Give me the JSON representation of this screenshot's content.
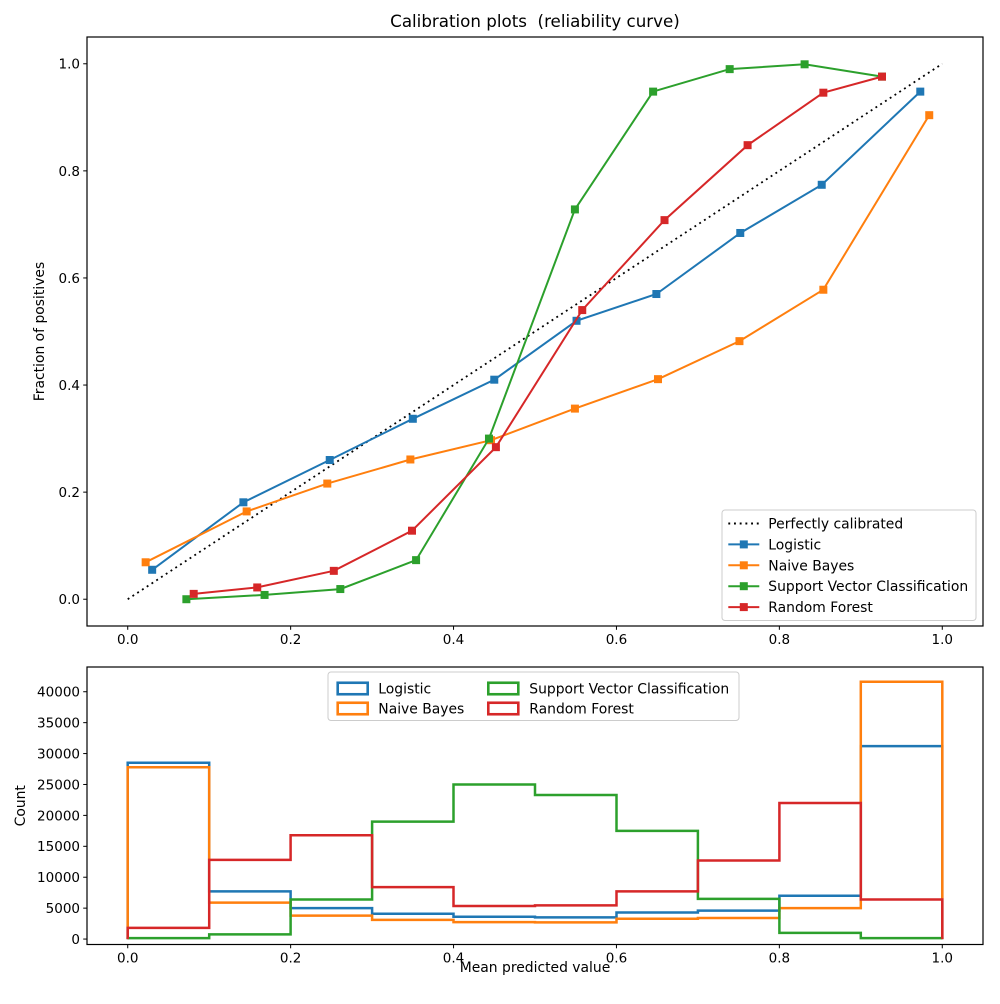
{
  "figure": {
    "background": "#ffffff"
  },
  "chart_data": [
    {
      "type": "line",
      "title": "Calibration plots  (reliability curve)",
      "xlabel": "",
      "ylabel": "Fraction of positives",
      "xlim": [
        -0.05,
        1.05
      ],
      "ylim": [
        -0.05,
        1.05
      ],
      "xticks": [
        "0.0",
        "0.2",
        "0.4",
        "0.6",
        "0.8",
        "1.0"
      ],
      "xtick_values": [
        0,
        0.2,
        0.4,
        0.6,
        0.8,
        1.0
      ],
      "yticks": [
        "0.0",
        "0.2",
        "0.4",
        "0.6",
        "0.8",
        "1.0"
      ],
      "ytick_values": [
        0,
        0.2,
        0.4,
        0.6,
        0.8,
        1.0
      ],
      "grid": false,
      "legend_position": "lower right",
      "reference": {
        "name": "Perfectly calibrated",
        "color": "#000000",
        "linestyle": "dotted",
        "x": [
          0,
          1
        ],
        "y": [
          0,
          1
        ]
      },
      "series": [
        {
          "name": "Logistic",
          "color": "#1f77b4",
          "marker": "square",
          "x": [
            0.03,
            0.142,
            0.248,
            0.35,
            0.45,
            0.551,
            0.649,
            0.752,
            0.852,
            0.973
          ],
          "y": [
            0.055,
            0.181,
            0.26,
            0.337,
            0.41,
            0.52,
            0.57,
            0.684,
            0.774,
            0.948
          ]
        },
        {
          "name": "Naive Bayes",
          "color": "#ff7f0e",
          "marker": "square",
          "x": [
            0.022,
            0.146,
            0.245,
            0.347,
            0.446,
            0.549,
            0.651,
            0.751,
            0.854,
            0.984
          ],
          "y": [
            0.069,
            0.164,
            0.216,
            0.261,
            0.297,
            0.356,
            0.411,
            0.482,
            0.578,
            0.904
          ]
        },
        {
          "name": "Support Vector Classification",
          "color": "#2ca02c",
          "marker": "square",
          "x": [
            0.072,
            0.168,
            0.261,
            0.354,
            0.4435,
            0.549,
            0.645,
            0.739,
            0.831,
            0.926
          ],
          "y": [
            0.0,
            0.008,
            0.019,
            0.073,
            0.3,
            0.728,
            0.948,
            0.99,
            0.999,
            0.976
          ]
        },
        {
          "name": "Random Forest",
          "color": "#d62728",
          "marker": "square",
          "x": [
            0.081,
            0.159,
            0.253,
            0.349,
            0.452,
            0.558,
            0.659,
            0.761,
            0.854,
            0.926
          ],
          "y": [
            0.01,
            0.022,
            0.053,
            0.128,
            0.284,
            0.54,
            0.708,
            0.848,
            0.946,
            0.976
          ]
        }
      ]
    },
    {
      "type": "step-histogram",
      "title": "",
      "xlabel": "Mean predicted value",
      "ylabel": "Count",
      "xlim": [
        -0.05,
        1.05
      ],
      "ylim": [
        -880,
        44000
      ],
      "xticks": [
        "0.0",
        "0.2",
        "0.4",
        "0.6",
        "0.8",
        "1.0"
      ],
      "xtick_values": [
        0,
        0.2,
        0.4,
        0.6,
        0.8,
        1.0
      ],
      "yticks": [
        "0",
        "5000",
        "10000",
        "15000",
        "20000",
        "25000",
        "30000",
        "35000",
        "40000"
      ],
      "ytick_values": [
        0,
        5000,
        10000,
        15000,
        20000,
        25000,
        30000,
        35000,
        40000
      ],
      "legend_position": "upper center",
      "legend_columns": 2,
      "bin_edges": [
        0,
        0.1,
        0.2,
        0.3,
        0.4,
        0.5,
        0.6,
        0.7,
        0.8,
        0.9,
        1.0
      ],
      "series": [
        {
          "name": "Logistic",
          "color": "#1f77b4",
          "counts": [
            28500,
            7700,
            5000,
            4100,
            3600,
            3500,
            4300,
            4600,
            7000,
            31200
          ]
        },
        {
          "name": "Naive Bayes",
          "color": "#ff7f0e",
          "counts": [
            27800,
            5900,
            3800,
            3100,
            2750,
            2700,
            3300,
            3400,
            5000,
            41600
          ]
        },
        {
          "name": "Support Vector Classification",
          "color": "#2ca02c",
          "counts": [
            150,
            750,
            6400,
            19000,
            25000,
            23300,
            17500,
            6500,
            1000,
            150
          ]
        },
        {
          "name": "Random Forest",
          "color": "#d62728",
          "counts": [
            1800,
            12800,
            16800,
            8400,
            5350,
            5450,
            7700,
            12700,
            22000,
            6400
          ]
        }
      ]
    }
  ]
}
